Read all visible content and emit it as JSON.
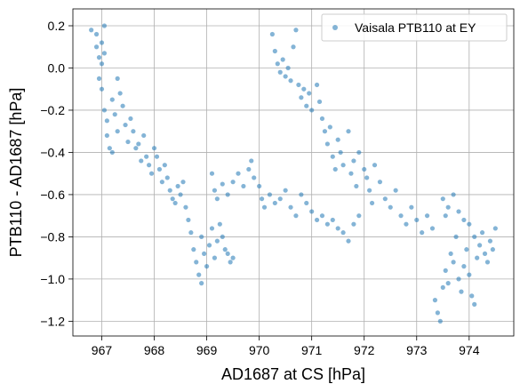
{
  "chart_data": {
    "type": "scatter",
    "title": "",
    "xlabel": "AD1687 at CS [hPa]",
    "ylabel": "PTB110 - AD1687 [hPa]",
    "xlim": [
      966.45,
      974.85
    ],
    "ylim": [
      -1.27,
      0.28
    ],
    "xticks": [
      967,
      968,
      969,
      970,
      971,
      972,
      973,
      974
    ],
    "yticks": [
      0.2,
      0.0,
      -0.2,
      -0.4,
      -0.6,
      -0.8,
      -1.0,
      -1.2
    ],
    "xtick_labels": [
      "967",
      "968",
      "969",
      "970",
      "971",
      "972",
      "973",
      "974"
    ],
    "ytick_labels": [
      "0.2",
      "0.0",
      "−0.2",
      "−0.4",
      "−0.6",
      "−0.8",
      "−1.0",
      "−1.2"
    ],
    "grid": true,
    "legend_position": "top-right",
    "series": [
      {
        "name": "Vaisala PTB110 at EY",
        "color": "#1f77b4",
        "alpha": 0.55,
        "marker": "circle",
        "points": [
          [
            966.8,
            0.18
          ],
          [
            966.9,
            0.16
          ],
          [
            966.9,
            0.1
          ],
          [
            966.95,
            0.05
          ],
          [
            967.0,
            0.02
          ],
          [
            967.0,
            0.12
          ],
          [
            967.05,
            0.07
          ],
          [
            967.05,
            0.2
          ],
          [
            966.95,
            -0.05
          ],
          [
            967.0,
            -0.1
          ],
          [
            967.05,
            -0.2
          ],
          [
            967.1,
            -0.25
          ],
          [
            967.1,
            -0.32
          ],
          [
            967.15,
            -0.38
          ],
          [
            967.2,
            -0.4
          ],
          [
            967.2,
            -0.15
          ],
          [
            967.25,
            -0.22
          ],
          [
            967.3,
            -0.3
          ],
          [
            967.3,
            -0.05
          ],
          [
            967.35,
            -0.12
          ],
          [
            967.4,
            -0.18
          ],
          [
            967.45,
            -0.27
          ],
          [
            967.5,
            -0.35
          ],
          [
            967.55,
            -0.24
          ],
          [
            967.6,
            -0.3
          ],
          [
            967.65,
            -0.38
          ],
          [
            967.7,
            -0.36
          ],
          [
            967.75,
            -0.44
          ],
          [
            967.8,
            -0.32
          ],
          [
            967.85,
            -0.42
          ],
          [
            967.9,
            -0.46
          ],
          [
            967.95,
            -0.5
          ],
          [
            968.0,
            -0.38
          ],
          [
            968.05,
            -0.42
          ],
          [
            968.1,
            -0.48
          ],
          [
            968.15,
            -0.54
          ],
          [
            968.2,
            -0.46
          ],
          [
            968.25,
            -0.52
          ],
          [
            968.3,
            -0.58
          ],
          [
            968.35,
            -0.62
          ],
          [
            968.4,
            -0.64
          ],
          [
            968.45,
            -0.56
          ],
          [
            968.5,
            -0.6
          ],
          [
            968.55,
            -0.54
          ],
          [
            968.6,
            -0.66
          ],
          [
            968.65,
            -0.72
          ],
          [
            968.7,
            -0.78
          ],
          [
            968.75,
            -0.86
          ],
          [
            968.8,
            -0.92
          ],
          [
            968.85,
            -0.98
          ],
          [
            968.9,
            -1.02
          ],
          [
            968.9,
            -0.8
          ],
          [
            968.95,
            -0.88
          ],
          [
            969.0,
            -0.94
          ],
          [
            969.05,
            -0.84
          ],
          [
            969.1,
            -0.76
          ],
          [
            969.15,
            -0.9
          ],
          [
            969.2,
            -0.82
          ],
          [
            969.25,
            -0.74
          ],
          [
            969.3,
            -0.8
          ],
          [
            969.35,
            -0.86
          ],
          [
            969.4,
            -0.88
          ],
          [
            969.45,
            -0.92
          ],
          [
            969.5,
            -0.9
          ],
          [
            969.1,
            -0.5
          ],
          [
            969.15,
            -0.58
          ],
          [
            969.2,
            -0.62
          ],
          [
            969.3,
            -0.55
          ],
          [
            969.4,
            -0.6
          ],
          [
            969.5,
            -0.54
          ],
          [
            969.6,
            -0.5
          ],
          [
            969.7,
            -0.56
          ],
          [
            969.8,
            -0.48
          ],
          [
            969.85,
            -0.44
          ],
          [
            969.9,
            -0.52
          ],
          [
            970.0,
            -0.56
          ],
          [
            970.05,
            -0.62
          ],
          [
            970.1,
            -0.66
          ],
          [
            970.2,
            -0.6
          ],
          [
            970.3,
            -0.64
          ],
          [
            970.4,
            -0.62
          ],
          [
            970.5,
            -0.58
          ],
          [
            970.6,
            -0.66
          ],
          [
            970.7,
            -0.7
          ],
          [
            970.8,
            -0.6
          ],
          [
            970.9,
            -0.64
          ],
          [
            971.0,
            -0.68
          ],
          [
            971.1,
            -0.72
          ],
          [
            971.2,
            -0.7
          ],
          [
            971.3,
            -0.74
          ],
          [
            971.4,
            -0.72
          ],
          [
            971.5,
            -0.76
          ],
          [
            971.6,
            -0.78
          ],
          [
            971.7,
            -0.82
          ],
          [
            971.8,
            -0.74
          ],
          [
            971.9,
            -0.7
          ],
          [
            970.25,
            0.16
          ],
          [
            970.3,
            0.08
          ],
          [
            970.35,
            0.02
          ],
          [
            970.4,
            -0.02
          ],
          [
            970.45,
            0.04
          ],
          [
            970.5,
            -0.04
          ],
          [
            970.55,
            0.0
          ],
          [
            970.6,
            -0.06
          ],
          [
            970.65,
            0.1
          ],
          [
            970.7,
            0.18
          ],
          [
            970.75,
            -0.08
          ],
          [
            970.8,
            -0.14
          ],
          [
            970.85,
            -0.1
          ],
          [
            970.9,
            -0.18
          ],
          [
            970.95,
            -0.12
          ],
          [
            971.0,
            -0.2
          ],
          [
            971.1,
            -0.08
          ],
          [
            971.15,
            -0.16
          ],
          [
            971.2,
            -0.24
          ],
          [
            971.25,
            -0.3
          ],
          [
            971.3,
            -0.36
          ],
          [
            971.35,
            -0.28
          ],
          [
            971.4,
            -0.42
          ],
          [
            971.45,
            -0.48
          ],
          [
            971.5,
            -0.34
          ],
          [
            971.55,
            -0.4
          ],
          [
            971.6,
            -0.46
          ],
          [
            971.7,
            -0.3
          ],
          [
            971.75,
            -0.5
          ],
          [
            971.8,
            -0.44
          ],
          [
            971.85,
            -0.56
          ],
          [
            971.9,
            -0.4
          ],
          [
            972.0,
            -0.48
          ],
          [
            972.05,
            -0.52
          ],
          [
            972.1,
            -0.58
          ],
          [
            972.15,
            -0.64
          ],
          [
            972.2,
            -0.46
          ],
          [
            972.3,
            -0.54
          ],
          [
            972.4,
            -0.62
          ],
          [
            972.5,
            -0.66
          ],
          [
            972.6,
            -0.58
          ],
          [
            972.7,
            -0.7
          ],
          [
            972.8,
            -0.74
          ],
          [
            972.9,
            -0.66
          ],
          [
            973.0,
            -0.72
          ],
          [
            973.1,
            -0.78
          ],
          [
            973.2,
            -0.7
          ],
          [
            973.3,
            -0.76
          ],
          [
            973.35,
            -1.1
          ],
          [
            973.4,
            -1.16
          ],
          [
            973.45,
            -1.2
          ],
          [
            973.5,
            -1.04
          ],
          [
            973.55,
            -0.96
          ],
          [
            973.6,
            -1.02
          ],
          [
            973.65,
            -0.88
          ],
          [
            973.7,
            -0.92
          ],
          [
            973.75,
            -0.8
          ],
          [
            973.8,
            -1.0
          ],
          [
            973.85,
            -1.06
          ],
          [
            973.9,
            -0.94
          ],
          [
            973.95,
            -0.86
          ],
          [
            974.0,
            -0.98
          ],
          [
            974.05,
            -1.08
          ],
          [
            974.1,
            -1.12
          ],
          [
            974.15,
            -0.9
          ],
          [
            974.2,
            -0.84
          ],
          [
            974.25,
            -0.78
          ],
          [
            974.3,
            -0.88
          ],
          [
            974.35,
            -0.92
          ],
          [
            974.4,
            -0.82
          ],
          [
            974.45,
            -0.86
          ],
          [
            974.5,
            -0.76
          ],
          [
            973.5,
            -0.62
          ],
          [
            973.55,
            -0.7
          ],
          [
            973.6,
            -0.66
          ],
          [
            973.7,
            -0.6
          ],
          [
            973.8,
            -0.68
          ],
          [
            973.9,
            -0.72
          ],
          [
            974.0,
            -0.74
          ],
          [
            974.1,
            -0.8
          ]
        ]
      }
    ]
  }
}
